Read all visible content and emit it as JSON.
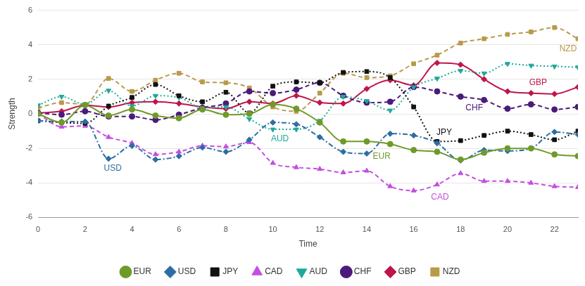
{
  "chart_data": {
    "type": "line",
    "x_label": "Time",
    "y_label": "Strength",
    "x": [
      0,
      1,
      2,
      3,
      4,
      5,
      6,
      7,
      8,
      9,
      10,
      11,
      12,
      13,
      14,
      15,
      16,
      17,
      18,
      19,
      20,
      21,
      22,
      23
    ],
    "xlim": [
      0,
      23
    ],
    "xticks": [
      0,
      2,
      4,
      6,
      8,
      10,
      12,
      14,
      16,
      18,
      20,
      22
    ],
    "ylim": [
      -6,
      6
    ],
    "yticks": [
      -6,
      -4,
      -2,
      0,
      2,
      4,
      6
    ],
    "grid": "y",
    "legend": "bottom",
    "series": [
      {
        "name": "EUR",
        "color": "#6f9a2a",
        "marker": "circle",
        "line_style": "solid",
        "values": [
          0.0,
          -0.5,
          0.5,
          -0.1,
          0.25,
          -0.1,
          -0.25,
          0.25,
          -0.05,
          0.0,
          0.55,
          0.3,
          -0.5,
          -1.6,
          -1.6,
          -1.75,
          -2.1,
          -2.2,
          -2.65,
          -2.25,
          -2.0,
          -2.0,
          -2.35,
          -2.45
        ]
      },
      {
        "name": "USD",
        "color": "#2e6da4",
        "marker": "diamond",
        "line_style": "dashdot",
        "values": [
          -0.4,
          -0.45,
          -0.45,
          -2.6,
          -1.85,
          -2.65,
          -2.45,
          -1.95,
          -2.2,
          -1.5,
          -0.5,
          -0.6,
          -1.35,
          -2.2,
          -2.3,
          -1.15,
          -1.25,
          -1.7,
          -2.7,
          -2.1,
          -2.15,
          -2.0,
          -1.05,
          -1.2
        ]
      },
      {
        "name": "JPY",
        "color": "#111111",
        "marker": "square",
        "line_style": "dotted",
        "values": [
          -0.4,
          -0.5,
          -0.55,
          0.45,
          0.95,
          1.7,
          1.05,
          0.7,
          1.25,
          0.05,
          1.6,
          1.85,
          1.8,
          2.4,
          2.45,
          2.1,
          0.4,
          -1.6,
          -1.55,
          -1.25,
          -1.0,
          -1.2,
          -1.5,
          -1.0
        ]
      },
      {
        "name": "CAD",
        "color": "#c44fe0",
        "marker": "triangle",
        "line_style": "dashed",
        "values": [
          0.0,
          -0.75,
          -0.7,
          -1.35,
          -1.7,
          -2.35,
          -2.2,
          -1.85,
          -1.9,
          -1.65,
          -2.85,
          -3.1,
          -3.2,
          -3.4,
          -3.3,
          -4.2,
          -4.45,
          -4.1,
          -3.45,
          -3.9,
          -3.9,
          -4.0,
          -4.2,
          -4.25
        ]
      },
      {
        "name": "AUD",
        "color": "#1fa99a",
        "marker": "triangle-down",
        "line_style": "dotted",
        "values": [
          0.5,
          1.0,
          0.55,
          1.35,
          0.45,
          1.05,
          0.95,
          0.35,
          0.4,
          -0.3,
          -0.9,
          -0.9,
          -0.4,
          1.0,
          0.75,
          0.2,
          1.55,
          2.05,
          2.5,
          2.35,
          2.9,
          2.8,
          2.75,
          2.7
        ]
      },
      {
        "name": "CHF",
        "color": "#4b1a7a",
        "marker": "circle",
        "line_style": "dashed",
        "values": [
          0.05,
          -0.05,
          0.15,
          -0.15,
          -0.15,
          -0.35,
          -0.05,
          0.35,
          0.6,
          1.3,
          1.2,
          1.4,
          1.8,
          1.05,
          0.65,
          0.7,
          1.55,
          1.3,
          1.0,
          0.8,
          0.3,
          0.55,
          0.25,
          0.4
        ]
      },
      {
        "name": "GBP",
        "color": "#c0154a",
        "marker": "diamond",
        "line_style": "solid",
        "values": [
          0.05,
          0.15,
          0.5,
          0.4,
          0.65,
          0.7,
          0.6,
          0.4,
          0.3,
          0.7,
          0.6,
          1.05,
          0.65,
          0.6,
          1.45,
          1.95,
          1.65,
          2.95,
          2.85,
          2.0,
          1.3,
          1.2,
          1.15,
          1.55
        ]
      },
      {
        "name": "NZD",
        "color": "#b89a4a",
        "marker": "square",
        "line_style": "dashed",
        "values": [
          0.35,
          0.65,
          0.55,
          2.05,
          1.3,
          1.95,
          2.35,
          1.85,
          1.8,
          1.5,
          0.4,
          0.15,
          1.2,
          2.35,
          2.1,
          2.2,
          2.9,
          3.4,
          4.1,
          4.35,
          4.6,
          4.75,
          5.0,
          4.35
        ]
      }
    ]
  }
}
